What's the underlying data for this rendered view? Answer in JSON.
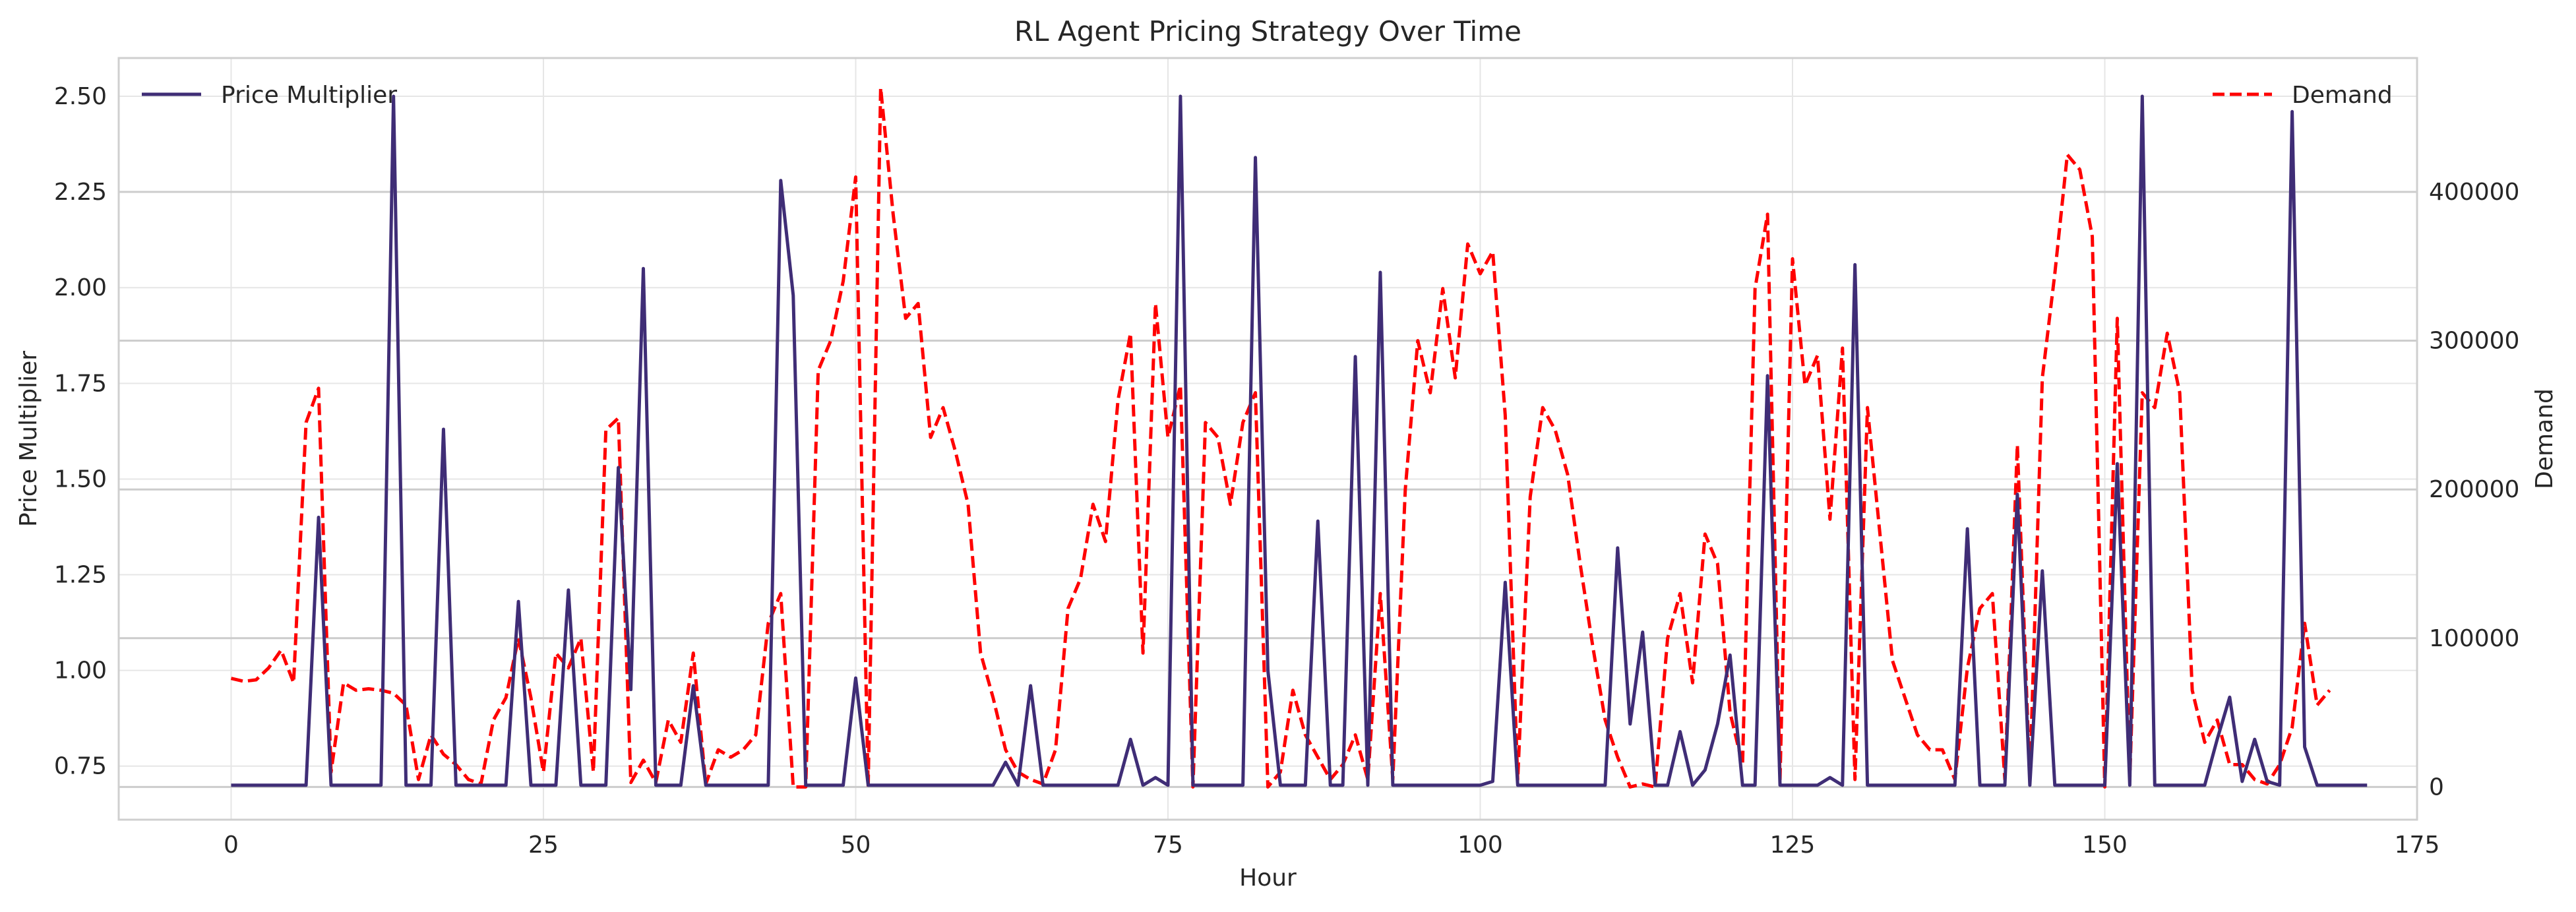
{
  "chart_data": {
    "type": "line",
    "title": "RL Agent Pricing Strategy Over Time",
    "xlabel": "Hour",
    "ylabel_left": "Price Multiplier",
    "ylabel_right": "Demand",
    "xlim": [
      -9,
      175
    ],
    "ylim_left": [
      0.61,
      2.6
    ],
    "ylim_right": [
      -22000,
      490000
    ],
    "x_ticks": [
      0,
      25,
      50,
      75,
      100,
      125,
      150,
      175
    ],
    "y_left_ticks": [
      "0.75",
      "1.00",
      "1.25",
      "1.50",
      "1.75",
      "2.00",
      "2.25",
      "2.50"
    ],
    "y_right_ticks": [
      "0",
      "100000",
      "200000",
      "300000",
      "400000"
    ],
    "grid": true,
    "series": [
      {
        "name": "Price Multiplier",
        "axis": "left",
        "color": "#3f2d76",
        "style": "solid",
        "legend_position": "top-left",
        "values": [
          0.7,
          0.7,
          0.7,
          0.7,
          0.7,
          0.7,
          0.7,
          1.4,
          0.7,
          0.7,
          0.7,
          0.7,
          0.7,
          2.5,
          0.7,
          0.7,
          0.7,
          1.63,
          0.7,
          0.7,
          0.7,
          0.7,
          0.7,
          1.18,
          0.7,
          0.7,
          0.7,
          1.21,
          0.7,
          0.7,
          0.7,
          1.53,
          0.95,
          2.05,
          0.7,
          0.7,
          0.7,
          0.96,
          0.7,
          0.7,
          0.7,
          0.7,
          0.7,
          0.7,
          2.28,
          1.98,
          0.7,
          0.7,
          0.7,
          0.7,
          0.98,
          0.7,
          0.7,
          0.7,
          0.7,
          0.7,
          0.7,
          0.7,
          0.7,
          0.7,
          0.7,
          0.7,
          0.76,
          0.7,
          0.96,
          0.7,
          0.7,
          0.7,
          0.7,
          0.7,
          0.7,
          0.7,
          0.82,
          0.7,
          0.72,
          0.7,
          2.5,
          0.7,
          0.7,
          0.7,
          0.7,
          0.7,
          2.34,
          1.0,
          0.7,
          0.7,
          0.7,
          1.39,
          0.7,
          0.7,
          1.82,
          0.7,
          2.04,
          0.7,
          0.7,
          0.7,
          0.7,
          0.7,
          0.7,
          0.7,
          0.7,
          0.71,
          1.23,
          0.7,
          0.7,
          0.7,
          0.7,
          0.7,
          0.7,
          0.7,
          0.7,
          1.32,
          0.86,
          1.1,
          0.7,
          0.7,
          0.84,
          0.7,
          0.74,
          0.86,
          1.04,
          0.7,
          0.7,
          1.77,
          0.7,
          0.7,
          0.7,
          0.7,
          0.72,
          0.7,
          2.06,
          0.7,
          0.7,
          0.7,
          0.7,
          0.7,
          0.7,
          0.7,
          0.7,
          1.37,
          0.7,
          0.7,
          0.7,
          1.46,
          0.7,
          1.26,
          0.7,
          0.7,
          0.7,
          0.7,
          0.7,
          1.54,
          0.7,
          2.5,
          0.7,
          0.7,
          0.7,
          0.7,
          0.7,
          0.82,
          0.93,
          0.71,
          0.82,
          0.71,
          0.7,
          2.46,
          0.8,
          0.7,
          0.7,
          0.7,
          0.7,
          0.7
        ]
      },
      {
        "name": "Demand",
        "axis": "right",
        "color": "#ff0000",
        "style": "dashed",
        "legend_position": "top-right",
        "values": [
          73000,
          71000,
          72000,
          80000,
          92000,
          70000,
          245000,
          268000,
          10000,
          70000,
          65000,
          66000,
          65000,
          63000,
          55000,
          5000,
          35000,
          22000,
          15000,
          5000,
          2000,
          45000,
          60000,
          100000,
          60000,
          10000,
          90000,
          80000,
          100000,
          10000,
          240000,
          248000,
          3000,
          18000,
          3000,
          45000,
          30000,
          90000,
          2000,
          25000,
          20000,
          25000,
          35000,
          110000,
          130000,
          0,
          0,
          280000,
          300000,
          340000,
          410000,
          0,
          470000,
          385000,
          315000,
          325000,
          235000,
          255000,
          225000,
          190000,
          90000,
          60000,
          25000,
          10000,
          5000,
          2000,
          25000,
          120000,
          140000,
          190000,
          165000,
          260000,
          305000,
          90000,
          325000,
          235000,
          270000,
          0,
          245000,
          235000,
          190000,
          245000,
          265000,
          0,
          10000,
          65000,
          35000,
          20000,
          5000,
          15000,
          35000,
          5000,
          130000,
          5000,
          200000,
          300000,
          265000,
          335000,
          275000,
          365000,
          345000,
          360000,
          250000,
          5000,
          195000,
          255000,
          240000,
          210000,
          150000,
          95000,
          45000,
          20000,
          0,
          2000,
          0,
          100000,
          130000,
          70000,
          170000,
          150000,
          50000,
          15000,
          335000,
          385000,
          5000,
          355000,
          270000,
          290000,
          180000,
          295000,
          5000,
          255000,
          170000,
          85000,
          60000,
          35000,
          25000,
          25000,
          5000,
          80000,
          120000,
          130000,
          5000,
          230000,
          5000,
          275000,
          345000,
          425000,
          415000,
          370000,
          0,
          315000,
          5000,
          265000,
          255000,
          305000,
          265000,
          65000,
          30000,
          45000,
          15000,
          15000,
          5000,
          2000,
          15000,
          40000,
          110000,
          55000,
          65000
        ]
      }
    ]
  }
}
